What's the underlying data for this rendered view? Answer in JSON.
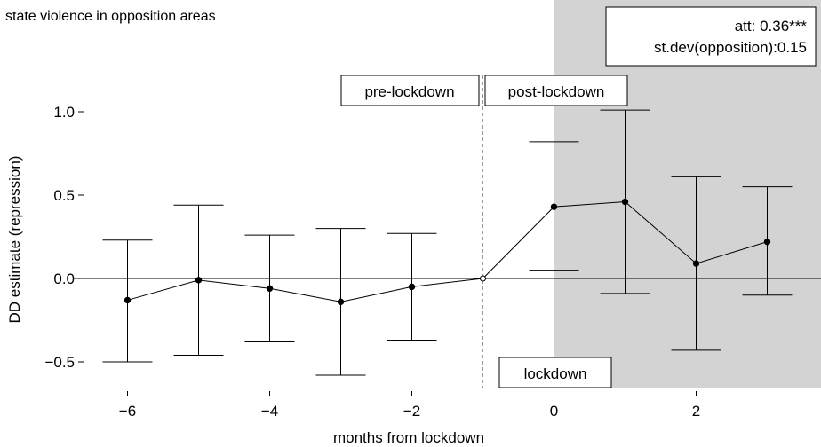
{
  "chart_data": {
    "type": "line",
    "title": "state violence in opposition areas",
    "xlabel": "months from lockdown",
    "ylabel": "DD estimate (repression)",
    "xlim": [
      -7.3,
      3.8
    ],
    "ylim": [
      -0.65,
      1.3
    ],
    "xticks": [
      -6,
      -4,
      -2,
      0,
      2
    ],
    "xtick_labels": [
      "−6",
      "−4",
      "−2",
      "0",
      "2"
    ],
    "yticks": [
      -0.5,
      0.0,
      0.5,
      1.0
    ],
    "ytick_labels": [
      "−0.5",
      "0.0",
      "0.5",
      "1.0"
    ],
    "grid": false,
    "shaded_region": {
      "from_x": 0,
      "color": "#d3d3d3"
    },
    "reference_line_x": -1,
    "series": [
      {
        "x": [
          -6,
          -5,
          -4,
          -3,
          -2,
          -1,
          0,
          1,
          2,
          3
        ],
        "estimate": [
          -0.13,
          -0.01,
          -0.06,
          -0.14,
          -0.05,
          0.0,
          0.43,
          0.46,
          0.09,
          0.22
        ],
        "ci_lower": [
          -0.5,
          -0.46,
          -0.38,
          -0.58,
          -0.37,
          0.0,
          0.05,
          -0.09,
          -0.43,
          -0.1
        ],
        "ci_upper": [
          0.23,
          0.44,
          0.26,
          0.3,
          0.27,
          0.0,
          0.82,
          1.01,
          0.61,
          0.55
        ]
      }
    ],
    "annotations": {
      "pre": "pre-lockdown",
      "post": "post-lockdown",
      "lockdown": "lockdown",
      "stats_line1": "att: 0.36***",
      "stats_line2": "st.dev(opposition):0.15"
    }
  }
}
